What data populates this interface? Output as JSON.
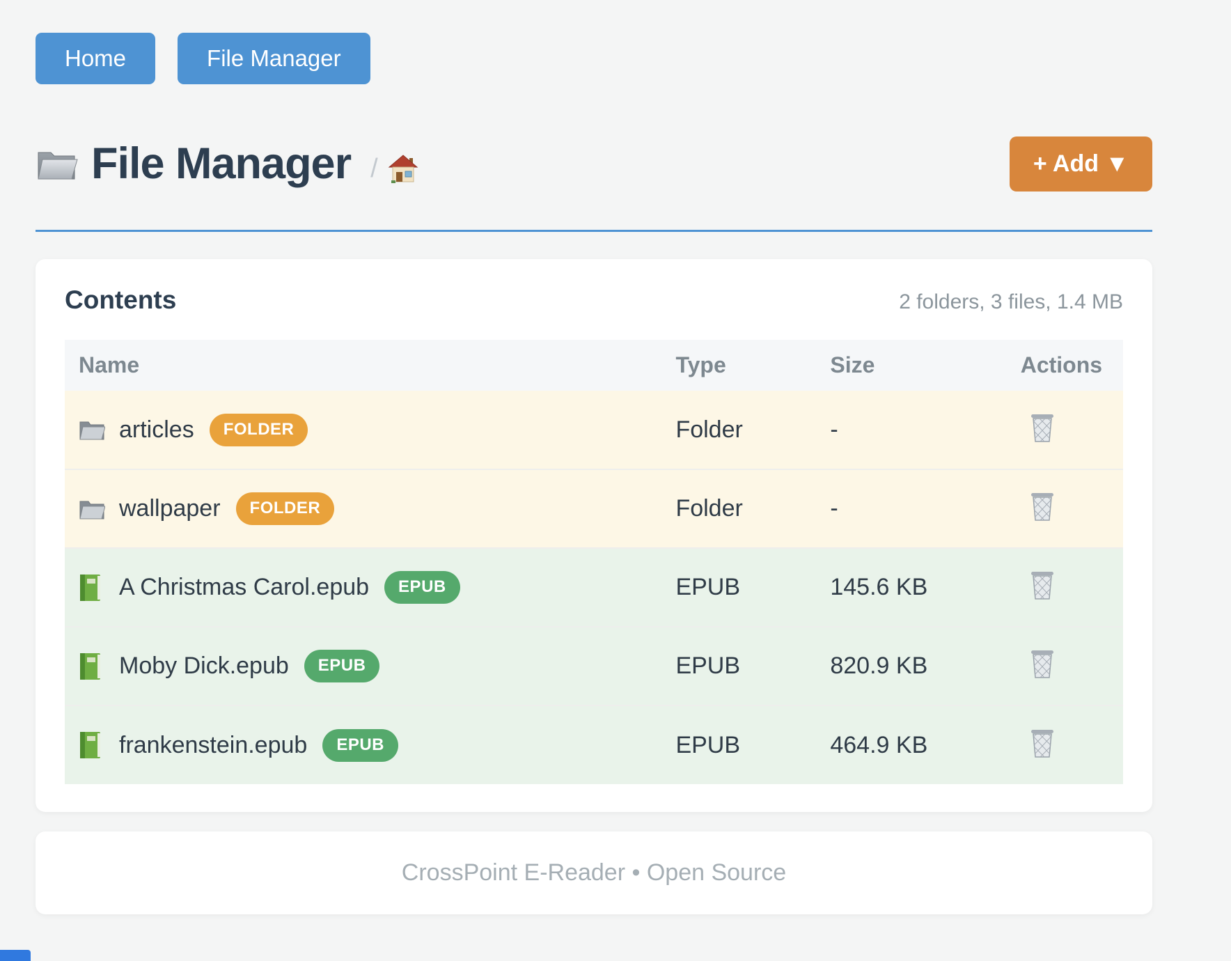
{
  "nav": {
    "buttons": [
      {
        "label": "Home"
      },
      {
        "label": "File Manager"
      }
    ]
  },
  "header": {
    "title": "File Manager",
    "title_icon": "folder-icon",
    "breadcrumb_separator": "/",
    "breadcrumb_home_icon": "house-icon",
    "add_button_label": "+ Add ▼"
  },
  "content": {
    "card_title": "Contents",
    "summary": "2 folders, 3 files, 1.4 MB",
    "table": {
      "headers": [
        "Name",
        "Type",
        "Size",
        "Actions"
      ],
      "row_icons": {
        "folder": "folder-icon",
        "epub": "green-book-icon"
      },
      "action_icon": "trash-icon",
      "rows": [
        {
          "name": "articles",
          "badge": "FOLDER",
          "kind": "folder",
          "type": "Folder",
          "size": "-"
        },
        {
          "name": "wallpaper",
          "badge": "FOLDER",
          "kind": "folder",
          "type": "Folder",
          "size": "-"
        },
        {
          "name": "A Christmas Carol.epub",
          "badge": "EPUB",
          "kind": "epub",
          "type": "EPUB",
          "size": "145.6 KB"
        },
        {
          "name": "Moby Dick.epub",
          "badge": "EPUB",
          "kind": "epub",
          "type": "EPUB",
          "size": "820.9 KB"
        },
        {
          "name": "frankenstein.epub",
          "badge": "EPUB",
          "kind": "epub",
          "type": "EPUB",
          "size": "464.9 KB"
        }
      ]
    }
  },
  "footer": {
    "text": "CrossPoint E-Reader • Open Source"
  },
  "colors": {
    "accent_blue": "#4e93d3",
    "accent_orange": "#d8863c",
    "badge_folder": "#e9a23b",
    "badge_epub": "#55a96c",
    "row_folder_bg": "#fdf7e6",
    "row_epub_bg": "#e9f3ea",
    "title_text": "#2d3e50",
    "muted_text": "#8b959c",
    "footer_text": "#a5aeb4"
  }
}
